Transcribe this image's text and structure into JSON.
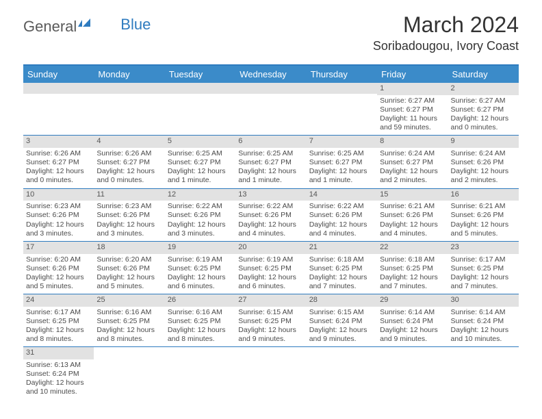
{
  "logo": {
    "general": "General",
    "blue": "Blue",
    "icon_color": "#2e7bbf"
  },
  "title": {
    "month": "March 2024",
    "location": "Soribadougou, Ivory Coast"
  },
  "colors": {
    "header_bg": "#3b8bc9",
    "header_text": "#ffffff",
    "border": "#2e7bbf",
    "daynum_bg": "#e2e2e2",
    "body_text": "#4a4a4a"
  },
  "fonts": {
    "title_size": 32,
    "location_size": 18,
    "dayhead_size": 13,
    "cell_size": 10.5
  },
  "day_headers": [
    "Sunday",
    "Monday",
    "Tuesday",
    "Wednesday",
    "Thursday",
    "Friday",
    "Saturday"
  ],
  "weeks": [
    [
      {
        "blank": true
      },
      {
        "blank": true
      },
      {
        "blank": true
      },
      {
        "blank": true
      },
      {
        "blank": true
      },
      {
        "num": "1",
        "sunrise": "Sunrise: 6:27 AM",
        "sunset": "Sunset: 6:27 PM",
        "daylight": "Daylight: 11 hours and 59 minutes."
      },
      {
        "num": "2",
        "sunrise": "Sunrise: 6:27 AM",
        "sunset": "Sunset: 6:27 PM",
        "daylight": "Daylight: 12 hours and 0 minutes."
      }
    ],
    [
      {
        "num": "3",
        "sunrise": "Sunrise: 6:26 AM",
        "sunset": "Sunset: 6:27 PM",
        "daylight": "Daylight: 12 hours and 0 minutes."
      },
      {
        "num": "4",
        "sunrise": "Sunrise: 6:26 AM",
        "sunset": "Sunset: 6:27 PM",
        "daylight": "Daylight: 12 hours and 0 minutes."
      },
      {
        "num": "5",
        "sunrise": "Sunrise: 6:25 AM",
        "sunset": "Sunset: 6:27 PM",
        "daylight": "Daylight: 12 hours and 1 minute."
      },
      {
        "num": "6",
        "sunrise": "Sunrise: 6:25 AM",
        "sunset": "Sunset: 6:27 PM",
        "daylight": "Daylight: 12 hours and 1 minute."
      },
      {
        "num": "7",
        "sunrise": "Sunrise: 6:25 AM",
        "sunset": "Sunset: 6:27 PM",
        "daylight": "Daylight: 12 hours and 1 minute."
      },
      {
        "num": "8",
        "sunrise": "Sunrise: 6:24 AM",
        "sunset": "Sunset: 6:27 PM",
        "daylight": "Daylight: 12 hours and 2 minutes."
      },
      {
        "num": "9",
        "sunrise": "Sunrise: 6:24 AM",
        "sunset": "Sunset: 6:26 PM",
        "daylight": "Daylight: 12 hours and 2 minutes."
      }
    ],
    [
      {
        "num": "10",
        "sunrise": "Sunrise: 6:23 AM",
        "sunset": "Sunset: 6:26 PM",
        "daylight": "Daylight: 12 hours and 3 minutes."
      },
      {
        "num": "11",
        "sunrise": "Sunrise: 6:23 AM",
        "sunset": "Sunset: 6:26 PM",
        "daylight": "Daylight: 12 hours and 3 minutes."
      },
      {
        "num": "12",
        "sunrise": "Sunrise: 6:22 AM",
        "sunset": "Sunset: 6:26 PM",
        "daylight": "Daylight: 12 hours and 3 minutes."
      },
      {
        "num": "13",
        "sunrise": "Sunrise: 6:22 AM",
        "sunset": "Sunset: 6:26 PM",
        "daylight": "Daylight: 12 hours and 4 minutes."
      },
      {
        "num": "14",
        "sunrise": "Sunrise: 6:22 AM",
        "sunset": "Sunset: 6:26 PM",
        "daylight": "Daylight: 12 hours and 4 minutes."
      },
      {
        "num": "15",
        "sunrise": "Sunrise: 6:21 AM",
        "sunset": "Sunset: 6:26 PM",
        "daylight": "Daylight: 12 hours and 4 minutes."
      },
      {
        "num": "16",
        "sunrise": "Sunrise: 6:21 AM",
        "sunset": "Sunset: 6:26 PM",
        "daylight": "Daylight: 12 hours and 5 minutes."
      }
    ],
    [
      {
        "num": "17",
        "sunrise": "Sunrise: 6:20 AM",
        "sunset": "Sunset: 6:26 PM",
        "daylight": "Daylight: 12 hours and 5 minutes."
      },
      {
        "num": "18",
        "sunrise": "Sunrise: 6:20 AM",
        "sunset": "Sunset: 6:26 PM",
        "daylight": "Daylight: 12 hours and 5 minutes."
      },
      {
        "num": "19",
        "sunrise": "Sunrise: 6:19 AM",
        "sunset": "Sunset: 6:25 PM",
        "daylight": "Daylight: 12 hours and 6 minutes."
      },
      {
        "num": "20",
        "sunrise": "Sunrise: 6:19 AM",
        "sunset": "Sunset: 6:25 PM",
        "daylight": "Daylight: 12 hours and 6 minutes."
      },
      {
        "num": "21",
        "sunrise": "Sunrise: 6:18 AM",
        "sunset": "Sunset: 6:25 PM",
        "daylight": "Daylight: 12 hours and 7 minutes."
      },
      {
        "num": "22",
        "sunrise": "Sunrise: 6:18 AM",
        "sunset": "Sunset: 6:25 PM",
        "daylight": "Daylight: 12 hours and 7 minutes."
      },
      {
        "num": "23",
        "sunrise": "Sunrise: 6:17 AM",
        "sunset": "Sunset: 6:25 PM",
        "daylight": "Daylight: 12 hours and 7 minutes."
      }
    ],
    [
      {
        "num": "24",
        "sunrise": "Sunrise: 6:17 AM",
        "sunset": "Sunset: 6:25 PM",
        "daylight": "Daylight: 12 hours and 8 minutes."
      },
      {
        "num": "25",
        "sunrise": "Sunrise: 6:16 AM",
        "sunset": "Sunset: 6:25 PM",
        "daylight": "Daylight: 12 hours and 8 minutes."
      },
      {
        "num": "26",
        "sunrise": "Sunrise: 6:16 AM",
        "sunset": "Sunset: 6:25 PM",
        "daylight": "Daylight: 12 hours and 8 minutes."
      },
      {
        "num": "27",
        "sunrise": "Sunrise: 6:15 AM",
        "sunset": "Sunset: 6:25 PM",
        "daylight": "Daylight: 12 hours and 9 minutes."
      },
      {
        "num": "28",
        "sunrise": "Sunrise: 6:15 AM",
        "sunset": "Sunset: 6:24 PM",
        "daylight": "Daylight: 12 hours and 9 minutes."
      },
      {
        "num": "29",
        "sunrise": "Sunrise: 6:14 AM",
        "sunset": "Sunset: 6:24 PM",
        "daylight": "Daylight: 12 hours and 9 minutes."
      },
      {
        "num": "30",
        "sunrise": "Sunrise: 6:14 AM",
        "sunset": "Sunset: 6:24 PM",
        "daylight": "Daylight: 12 hours and 10 minutes."
      }
    ],
    [
      {
        "num": "31",
        "sunrise": "Sunrise: 6:13 AM",
        "sunset": "Sunset: 6:24 PM",
        "daylight": "Daylight: 12 hours and 10 minutes."
      },
      {
        "blank": true
      },
      {
        "blank": true
      },
      {
        "blank": true
      },
      {
        "blank": true
      },
      {
        "blank": true
      },
      {
        "blank": true
      }
    ]
  ]
}
